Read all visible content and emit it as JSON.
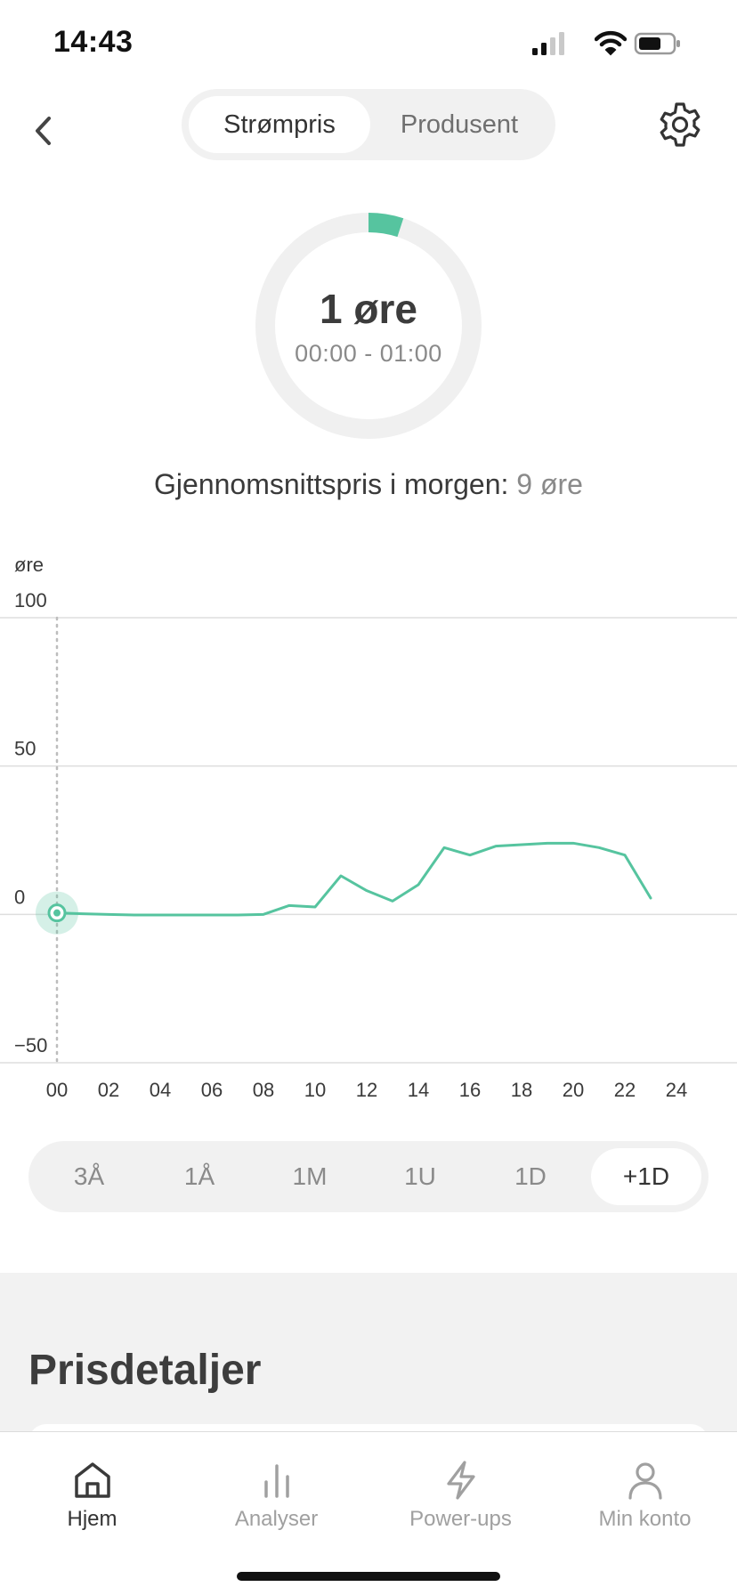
{
  "status_bar": {
    "time": "14:43",
    "icons": [
      "signal-icon",
      "wifi-icon",
      "battery-icon"
    ]
  },
  "header": {
    "back_icon": "chevron-left-icon",
    "tabs": [
      {
        "label": "Strømpris",
        "active": true
      },
      {
        "label": "Produsent",
        "active": false
      }
    ],
    "settings_icon": "gear-icon"
  },
  "current_price": {
    "value": "1 øre",
    "time_range": "00:00 - 01:00",
    "gauge_fraction": 0.05,
    "accent_color": "#56c49f"
  },
  "average": {
    "label": "Gjennomsnittspris i morgen:",
    "value": "9 øre"
  },
  "chart_data": {
    "type": "line",
    "ylabel": "øre",
    "ylim": [
      -50,
      100
    ],
    "yticks": [
      100,
      50,
      0,
      -50
    ],
    "xlim": [
      0,
      24
    ],
    "xticks": [
      "00",
      "02",
      "04",
      "06",
      "08",
      "10",
      "12",
      "14",
      "16",
      "18",
      "20",
      "22",
      "24"
    ],
    "series": [
      {
        "x": [
          0,
          1,
          2,
          3,
          4,
          5,
          6,
          7,
          8,
          9,
          10,
          11,
          12,
          13,
          14,
          15,
          16,
          17,
          18,
          19,
          20,
          21,
          22,
          23
        ],
        "values": [
          0.5,
          0.2,
          0,
          -0.2,
          -0.2,
          -0.2,
          -0.2,
          -0.2,
          0,
          3,
          2.5,
          13,
          8,
          4.5,
          10,
          22.5,
          20,
          23,
          23.5,
          24,
          24,
          22.5,
          20,
          5.5
        ],
        "color": "#56c49f"
      }
    ],
    "current_hour": 0,
    "grid": true
  },
  "range_selector": {
    "options": [
      {
        "label": "3Å",
        "active": false
      },
      {
        "label": "1Å",
        "active": false
      },
      {
        "label": "1M",
        "active": false
      },
      {
        "label": "1U",
        "active": false
      },
      {
        "label": "1D",
        "active": false
      },
      {
        "label": "+1D",
        "active": true
      }
    ]
  },
  "details": {
    "title": "Prisdetaljer"
  },
  "tab_bar": {
    "items": [
      {
        "label": "Hjem",
        "icon": "home-icon",
        "active": true
      },
      {
        "label": "Analyser",
        "icon": "bar-chart-icon",
        "active": false
      },
      {
        "label": "Power-ups",
        "icon": "lightning-icon",
        "active": false
      },
      {
        "label": "Min konto",
        "icon": "user-icon",
        "active": false
      }
    ]
  }
}
